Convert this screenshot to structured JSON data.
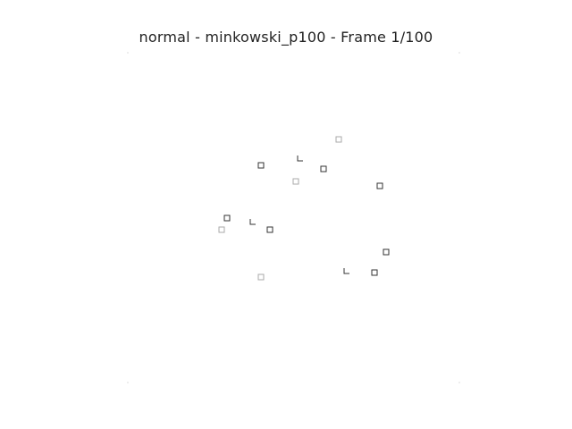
{
  "title": "normal - minkowski_p100 - Frame 1/100",
  "marker_color": "#333333",
  "marker_color_light": "#aaaaaa",
  "markers": [
    {
      "id": "m1",
      "shape": "square",
      "tone": "light"
    },
    {
      "id": "m2",
      "shape": "corner",
      "tone": "dark"
    },
    {
      "id": "m3",
      "shape": "square",
      "tone": "dark"
    },
    {
      "id": "m4",
      "shape": "square",
      "tone": "dark"
    },
    {
      "id": "m5",
      "shape": "square",
      "tone": "light"
    },
    {
      "id": "m6",
      "shape": "square",
      "tone": "dark"
    },
    {
      "id": "m7",
      "shape": "square",
      "tone": "dark"
    },
    {
      "id": "m8",
      "shape": "corner",
      "tone": "dark"
    },
    {
      "id": "m9",
      "shape": "square",
      "tone": "light"
    },
    {
      "id": "m10",
      "shape": "square",
      "tone": "dark"
    },
    {
      "id": "m11",
      "shape": "square",
      "tone": "dark"
    },
    {
      "id": "m12",
      "shape": "corner",
      "tone": "dark"
    },
    {
      "id": "m13",
      "shape": "square",
      "tone": "dark"
    },
    {
      "id": "m14",
      "shape": "square",
      "tone": "light"
    }
  ]
}
